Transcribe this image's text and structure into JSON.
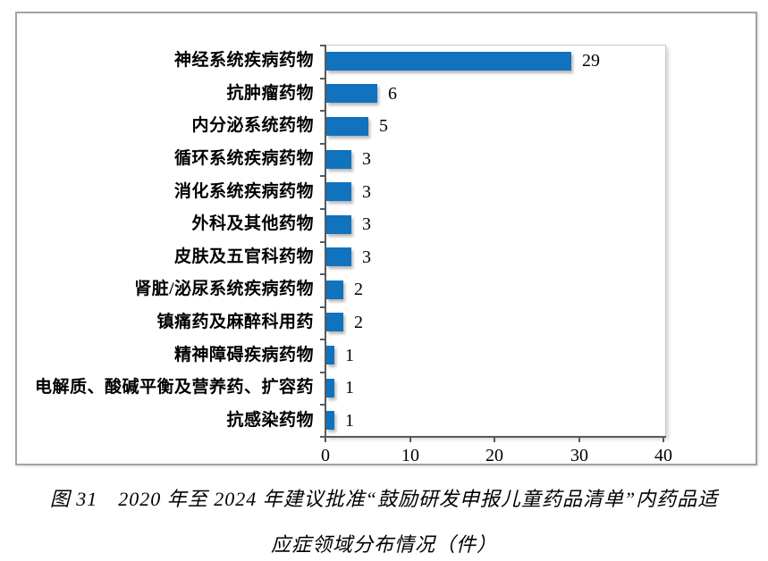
{
  "figure": {
    "caption_line1": "图 31　2020 年至 2024 年建议批准“鼓励研发申报儿童药品清单”内药品适",
    "caption_line2": "应症领域分布情况（件）"
  },
  "chart_data": {
    "type": "bar",
    "orientation": "horizontal",
    "title": "图 31 2020 年至 2024 年建议批准“鼓励研发申报儿童药品清单”内药品适应症领域分布情况（件）",
    "categories": [
      "神经系统疾病药物",
      "抗肿瘤药物",
      "内分泌系统药物",
      "循环系统疾病药物",
      "消化系统疾病药物",
      "外科及其他药物",
      "皮肤及五官科药物",
      "肾脏/泌尿系统疾病药物",
      "镇痛药及麻醉科用药",
      "精神障碍疾病药物",
      "电解质、酸碱平衡及营养药、扩容药",
      "抗感染药物"
    ],
    "values": [
      29,
      6,
      5,
      3,
      3,
      3,
      3,
      2,
      2,
      1,
      1,
      1
    ],
    "xlabel": "",
    "ylabel": "",
    "xlim": [
      0,
      40
    ],
    "xticks": [
      0,
      10,
      20,
      30,
      40
    ],
    "grid": false,
    "legend": "none",
    "value_labels_shown": true,
    "colors": {
      "bar": "#1172bd",
      "axis": "#595959",
      "chart_border": "#a3a3a3",
      "plot_border": "#c9c9c9",
      "text": "#000000"
    }
  }
}
